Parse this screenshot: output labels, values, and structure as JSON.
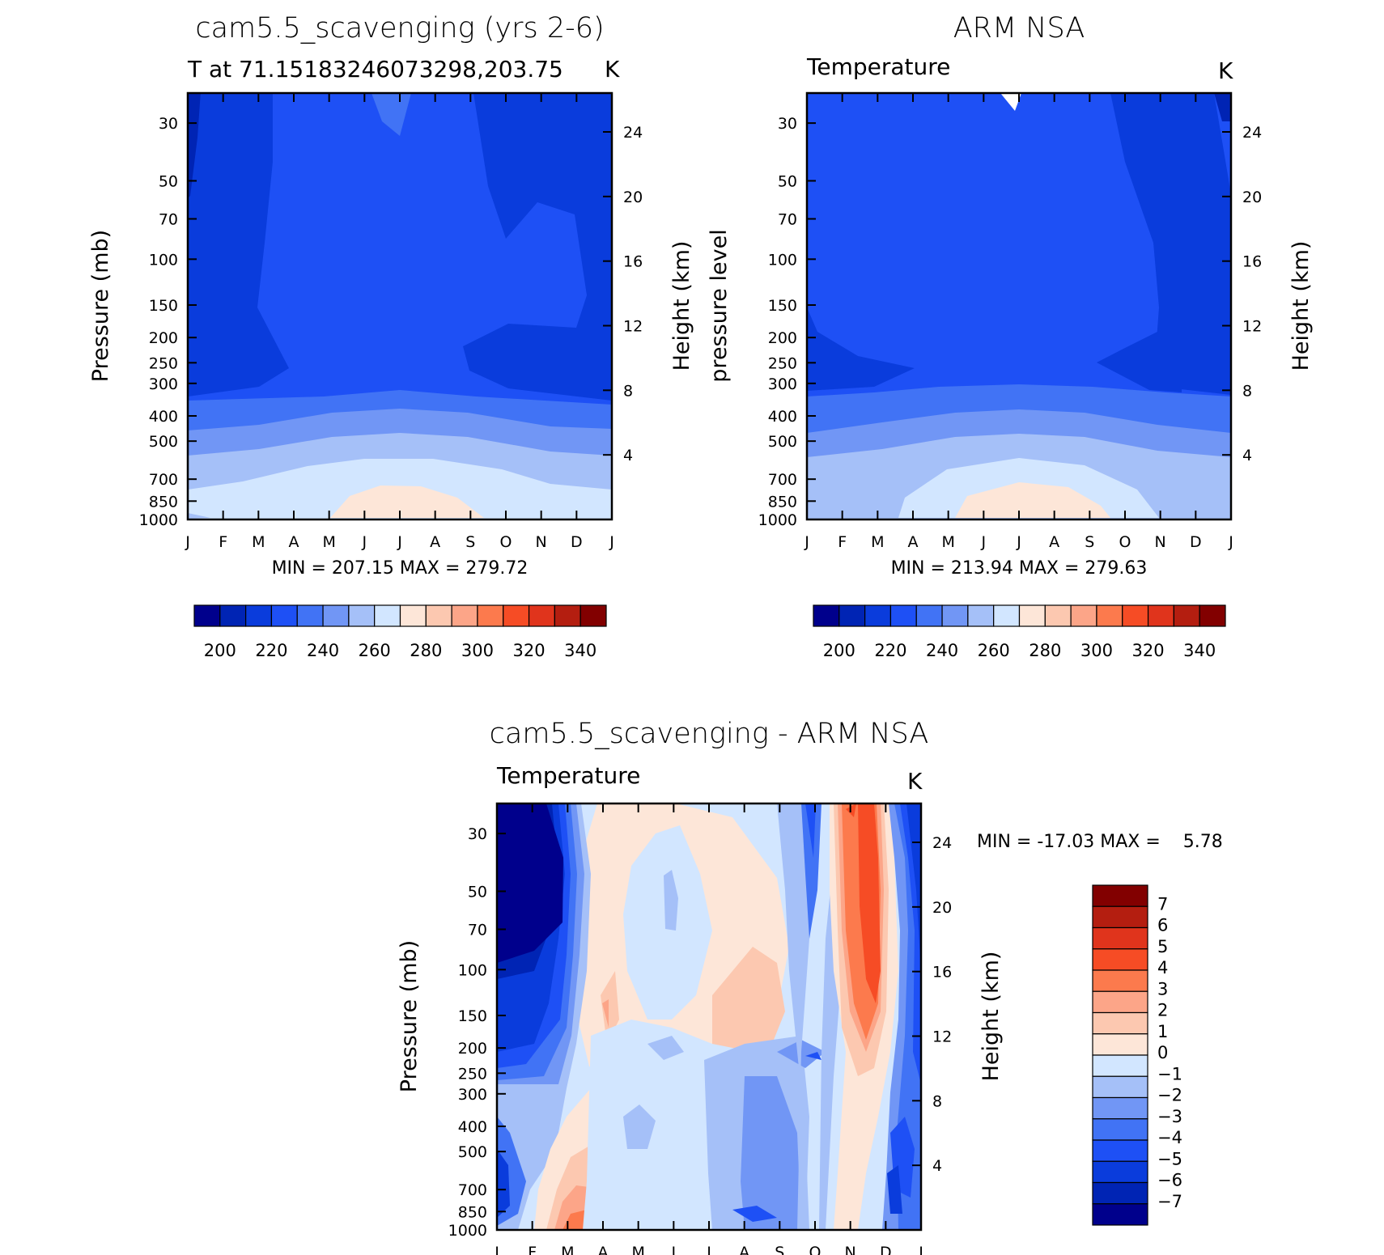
{
  "palette": [
    "#00008c",
    "#0024b4",
    "#0a3cdc",
    "#1e50f5",
    "#4173f5",
    "#7196f5",
    "#a5c0f8",
    "#d2e6ff",
    "#fde6d8",
    "#fcc8b0",
    "#fca588",
    "#fc7a4d",
    "#f64c25",
    "#e0341c",
    "#b41e10",
    "#820000"
  ],
  "chart_data": [
    {
      "id": "model",
      "type": "contour",
      "title": "cam5.5_scavenging (yrs 2-6)",
      "subtitle": "T at 71.15183246073298,203.75",
      "units": "K",
      "xlabel": "",
      "ylabel": "Pressure (mb)",
      "ylabel_right": "Height (km)",
      "x_ticks": [
        "J",
        "F",
        "M",
        "A",
        "M",
        "J",
        "J",
        "A",
        "S",
        "O",
        "N",
        "D",
        "J"
      ],
      "y_ticks": [
        30,
        50,
        70,
        100,
        150,
        200,
        250,
        300,
        400,
        500,
        700,
        850,
        1000
      ],
      "y_ticks_right": [
        4,
        8,
        12,
        16,
        20,
        24
      ],
      "ylim": [
        1000,
        23
      ],
      "min_label": "MIN = 207.15 MAX = 279.72",
      "levels": [
        200,
        210,
        220,
        230,
        240,
        250,
        260,
        270,
        280,
        290,
        300,
        310,
        320,
        330,
        340
      ],
      "colorbar_labels": [
        "200",
        "220",
        "240",
        "260",
        "280",
        "300",
        "320",
        "340"
      ]
    },
    {
      "id": "obs",
      "type": "contour",
      "title": "ARM NSA",
      "subtitle": "Temperature",
      "units": "K",
      "xlabel": "",
      "ylabel": "pressure level",
      "ylabel_right": "Height (km)",
      "x_ticks": [
        "J",
        "F",
        "M",
        "A",
        "M",
        "J",
        "J",
        "A",
        "S",
        "O",
        "N",
        "D",
        "J"
      ],
      "y_ticks": [
        30,
        50,
        70,
        100,
        150,
        200,
        250,
        300,
        400,
        500,
        700,
        850,
        1000
      ],
      "y_ticks_right": [
        4,
        8,
        12,
        16,
        20,
        24
      ],
      "ylim": [
        1000,
        23
      ],
      "min_label": "MIN = 213.94 MAX = 279.63",
      "levels": [
        200,
        210,
        220,
        230,
        240,
        250,
        260,
        270,
        280,
        290,
        300,
        310,
        320,
        330,
        340
      ],
      "colorbar_labels": [
        "200",
        "220",
        "240",
        "260",
        "280",
        "300",
        "320",
        "340"
      ]
    },
    {
      "id": "diff",
      "type": "contour",
      "title": "cam5.5_scavenging - ARM NSA",
      "subtitle": "Temperature",
      "units": "K",
      "xlabel": "",
      "ylabel": "Pressure (mb)",
      "ylabel_right": "Height (km)",
      "x_ticks": [
        "J",
        "F",
        "M",
        "A",
        "M",
        "J",
        "J",
        "A",
        "S",
        "O",
        "N",
        "D",
        "J"
      ],
      "y_ticks": [
        30,
        50,
        70,
        100,
        150,
        200,
        250,
        300,
        400,
        500,
        700,
        850,
        1000
      ],
      "y_ticks_right": [
        4,
        8,
        12,
        16,
        20,
        24
      ],
      "ylim": [
        1000,
        23
      ],
      "min_label": "MIN = -17.03 MAX =    5.78",
      "levels": [
        -7,
        -6,
        -5,
        -4,
        -3,
        -2,
        -1,
        0,
        1,
        2,
        3,
        4,
        5,
        6,
        7
      ],
      "colorbar_labels": [
        "7",
        "6",
        "5",
        "4",
        "3",
        "2",
        "1",
        "0",
        "−1",
        "−2",
        "−3",
        "−4",
        "−5",
        "−6",
        "−7"
      ]
    }
  ]
}
